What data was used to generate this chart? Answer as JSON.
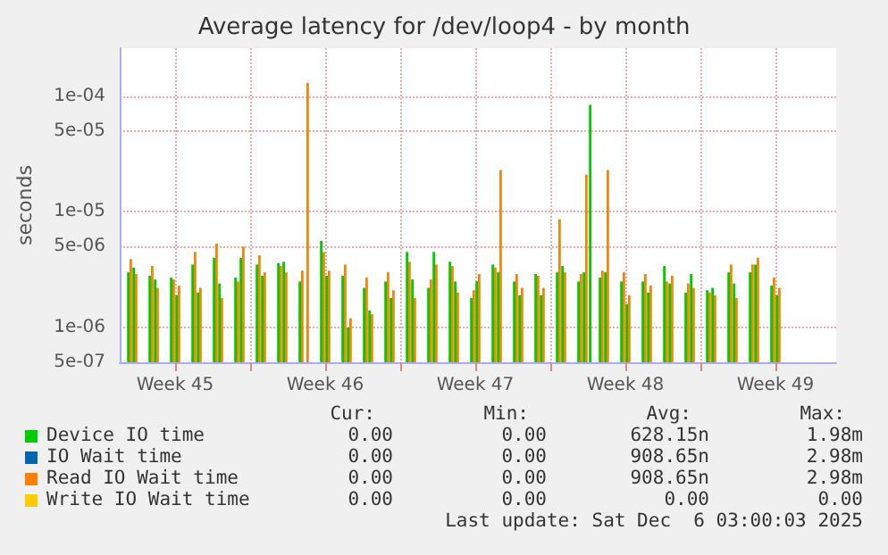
{
  "chart_data": {
    "type": "bar",
    "title": "Average latency for /dev/loop4 - by month",
    "ylabel": "seconds",
    "log": "y",
    "x": [
      "2025-11-04T09:00",
      "2025-11-04T15:00",
      "2025-11-05T09:00",
      "2025-11-05T15:00",
      "2025-11-06T09:00",
      "2025-11-06T15:00",
      "2025-11-07T09:00",
      "2025-11-07T15:00",
      "2025-11-08T09:00",
      "2025-11-08T15:00",
      "2025-11-09T09:00",
      "2025-11-09T15:00",
      "2025-11-10T09:00",
      "2025-11-10T15:00",
      "2025-11-11T09:00",
      "2025-11-11T15:00",
      "2025-11-12T09:00",
      "2025-11-12T15:00",
      "2025-11-13T09:00",
      "2025-11-13T15:00",
      "2025-11-14T09:00",
      "2025-11-14T15:00",
      "2025-11-15T09:00",
      "2025-11-15T15:00",
      "2025-11-16T09:00",
      "2025-11-16T15:00",
      "2025-11-17T09:00",
      "2025-11-17T15:00",
      "2025-11-18T09:00",
      "2025-11-18T15:00",
      "2025-11-19T09:00",
      "2025-11-19T15:00",
      "2025-11-20T09:00",
      "2025-11-20T15:00",
      "2025-11-21T09:00",
      "2025-11-21T15:00",
      "2025-11-22T09:00",
      "2025-11-22T15:00",
      "2025-11-23T09:00",
      "2025-11-23T15:00",
      "2025-11-24T09:00",
      "2025-11-24T15:00",
      "2025-11-25T09:00",
      "2025-11-25T15:00",
      "2025-11-25T22:00",
      "2025-11-26T09:00",
      "2025-11-26T15:00",
      "2025-11-27T09:00",
      "2025-11-27T15:00",
      "2025-11-28T09:00",
      "2025-11-28T15:00",
      "2025-11-29T09:00",
      "2025-11-29T15:00",
      "2025-11-30T09:00",
      "2025-11-30T15:00",
      "2025-12-01T09:00",
      "2025-12-01T15:00",
      "2025-12-02T09:00",
      "2025-12-02T15:00",
      "2025-12-03T09:00",
      "2025-12-03T15:00",
      "2025-12-04T09:00",
      "2025-12-04T15:00"
    ],
    "series": [
      {
        "name": "Device IO time",
        "color": "#00cc00",
        "values": [
          3e-06,
          3.3e-06,
          2.8e-06,
          2.6e-06,
          2.7e-06,
          1.9e-06,
          3.5e-06,
          2e-06,
          4e-06,
          2.4e-06,
          2.7e-06,
          4e-06,
          3.5e-06,
          2.8e-06,
          3.6e-06,
          3.7e-06,
          2.5e-06,
          null,
          5.6e-06,
          2.8e-06,
          2.8e-06,
          1e-06,
          2.2e-06,
          1.4e-06,
          2.5e-06,
          1.8e-06,
          4.5e-06,
          2.6e-06,
          2.2e-06,
          4.5e-06,
          3.7e-06,
          2.5e-06,
          1.8e-06,
          2.5e-06,
          3.5e-06,
          3e-06,
          2.5e-06,
          1.9e-06,
          2.9e-06,
          1.9e-06,
          3e-06,
          3.4e-06,
          2.5e-06,
          3e-06,
          8.4e-05,
          2.7e-06,
          3e-06,
          2.5e-06,
          1.6e-06,
          2.5e-06,
          2e-06,
          3.4e-06,
          2.4e-06,
          2e-06,
          2.9e-06,
          2.1e-06,
          2.2e-06,
          3e-06,
          2.4e-06,
          3e-06,
          3.5e-06,
          2.3e-06,
          1.9e-06
        ]
      },
      {
        "name": "IO Wait time",
        "color": "#0066b3",
        "values": [
          null,
          null,
          null,
          null,
          null,
          null,
          null,
          null,
          null,
          null,
          null,
          null,
          null,
          null,
          null,
          null,
          null,
          null,
          null,
          null,
          null,
          null,
          null,
          null,
          null,
          null,
          null,
          null,
          null,
          null,
          null,
          null,
          null,
          null,
          null,
          null,
          null,
          null,
          null,
          null,
          null,
          null,
          null,
          null,
          null,
          null,
          null,
          null,
          null,
          null,
          null,
          null,
          null,
          null,
          null,
          null,
          null,
          null,
          null,
          null,
          null,
          null,
          null
        ]
      },
      {
        "name": "Read IO Wait time",
        "color": "#ff8000",
        "values": [
          3.9e-06,
          2.9e-06,
          3.4e-06,
          2.2e-06,
          2.6e-06,
          2.3e-06,
          4.5e-06,
          2.2e-06,
          5.3e-06,
          1.8e-06,
          2.5e-06,
          5e-06,
          4.2e-06,
          3e-06,
          3.4e-06,
          3e-06,
          3.1e-06,
          0.00013,
          4.5e-06,
          3.1e-06,
          3.5e-06,
          1.2e-06,
          2.7e-06,
          1.3e-06,
          3e-06,
          2.1e-06,
          3.7e-06,
          1.8e-06,
          2.6e-06,
          3.5e-06,
          3.4e-06,
          2e-06,
          2.1e-06,
          2.9e-06,
          3.3e-06,
          2.3e-05,
          2.9e-06,
          2.2e-06,
          2.8e-06,
          2.2e-06,
          8.6e-06,
          3e-06,
          2.9e-06,
          2.1e-05,
          null,
          3.1e-06,
          2.3e-05,
          3e-06,
          1.9e-06,
          2.9e-06,
          2.3e-06,
          2.5e-06,
          2.8e-06,
          2.4e-06,
          2.2e-06,
          2e-06,
          1.9e-06,
          3.5e-06,
          1.8e-06,
          3.5e-06,
          4e-06,
          2.7e-06,
          2.2e-06
        ]
      },
      {
        "name": "Write IO Wait time",
        "color": "#ffcc00",
        "values": [
          null,
          null,
          null,
          null,
          null,
          null,
          null,
          null,
          null,
          null,
          null,
          null,
          null,
          null,
          null,
          null,
          null,
          null,
          null,
          null,
          null,
          null,
          null,
          null,
          null,
          null,
          null,
          null,
          null,
          null,
          null,
          null,
          null,
          null,
          null,
          null,
          null,
          null,
          null,
          null,
          null,
          null,
          null,
          null,
          null,
          null,
          null,
          null,
          null,
          null,
          null,
          null,
          null,
          null,
          null,
          null,
          null,
          null,
          null,
          null,
          null,
          null,
          null
        ]
      }
    ],
    "xlim": [
      "2025-11-03T22:00",
      "2025-12-07T08:00"
    ],
    "xticks": [
      {
        "value": "2025-11-06T12:00",
        "label": "Week 45"
      },
      {
        "value": "2025-11-10",
        "label": null
      },
      {
        "value": "2025-11-13T12:00",
        "label": "Week 46"
      },
      {
        "value": "2025-11-17",
        "label": null
      },
      {
        "value": "2025-11-20T12:00",
        "label": "Week 47"
      },
      {
        "value": "2025-11-24",
        "label": null
      },
      {
        "value": "2025-11-27T12:00",
        "label": "Week 48"
      },
      {
        "value": "2025-12-01",
        "label": null
      },
      {
        "value": "2025-12-04T12:00",
        "label": "Week 49"
      }
    ],
    "ylim": [
      5e-07,
      0.00026
    ],
    "yticks": [
      {
        "value": 5e-07,
        "label": "5e-07"
      },
      {
        "value": 1e-06,
        "label": "1e-06"
      },
      {
        "value": 5e-06,
        "label": "5e-06"
      },
      {
        "value": 1e-05,
        "label": "1e-05"
      },
      {
        "value": 5e-05,
        "label": "5e-05"
      },
      {
        "value": 0.0001,
        "label": "1e-04"
      }
    ],
    "grid": true,
    "legend": "bottom",
    "annotations": [
      "Cur:",
      "Min:",
      "Avg:",
      "Max:",
      "0.00",
      "0.00",
      "628.15n",
      "1.98m",
      "0.00",
      "0.00",
      "908.65n",
      "2.98m",
      "0.00",
      "0.00",
      "908.65n",
      "2.98m",
      "0.00",
      "0.00",
      "0.00",
      "0.00",
      "Last update: Sat Dec  6 03:00:03 2025"
    ]
  }
}
